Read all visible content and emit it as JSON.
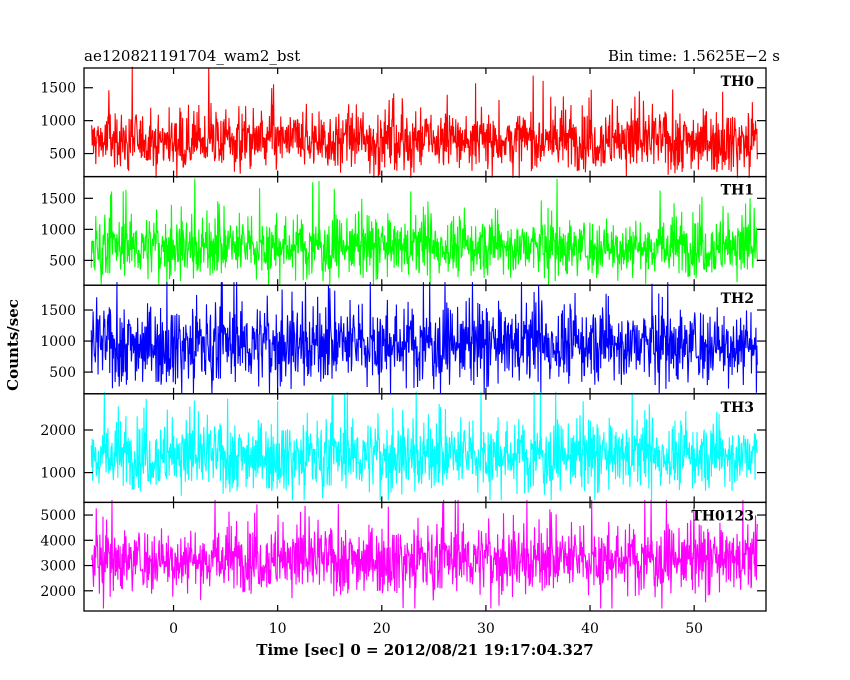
{
  "header": {
    "left_title": "ae120821191704_wam2_bst",
    "right_title": "Bin time: 1.5625E−2 s"
  },
  "axes": {
    "xlabel": "Time [sec] 0 = 2012/08/21 19:17:04.327",
    "ylabel": "Counts/sec"
  },
  "chart_data": {
    "type": "line",
    "x_range": [
      -8.6,
      56.9
    ],
    "x_ticks": [
      0,
      10,
      20,
      30,
      40,
      50
    ],
    "x_data_range": [
      -7.9,
      56.1
    ],
    "panels": [
      {
        "name": "TH0",
        "color": "#ff0000",
        "ylim": [
          150,
          1800
        ],
        "y_ticks": [
          500,
          1000,
          1500
        ],
        "baseline": 700,
        "min": 130,
        "max": 1820,
        "spread": 220
      },
      {
        "name": "TH1",
        "color": "#00ff00",
        "ylim": [
          100,
          1850
        ],
        "y_ticks": [
          500,
          1000,
          1500
        ],
        "baseline": 720,
        "min": 90,
        "max": 1880,
        "spread": 230
      },
      {
        "name": "TH2",
        "color": "#0000ff",
        "ylim": [
          150,
          1900
        ],
        "y_ticks": [
          500,
          1000,
          1500
        ],
        "baseline": 950,
        "min": 150,
        "max": 1950,
        "spread": 300
      },
      {
        "name": "TH3",
        "color": "#00ffff",
        "ylim": [
          300,
          2850
        ],
        "y_ticks": [
          1000,
          2000
        ],
        "baseline": 1400,
        "min": 350,
        "max": 2900,
        "spread": 380
      },
      {
        "name": "TH0123",
        "color": "#ff00ff",
        "ylim": [
          1200,
          5500
        ],
        "y_ticks": [
          2000,
          3000,
          4000,
          5000
        ],
        "baseline": 3250,
        "min": 1300,
        "max": 5600,
        "spread": 620
      }
    ]
  }
}
